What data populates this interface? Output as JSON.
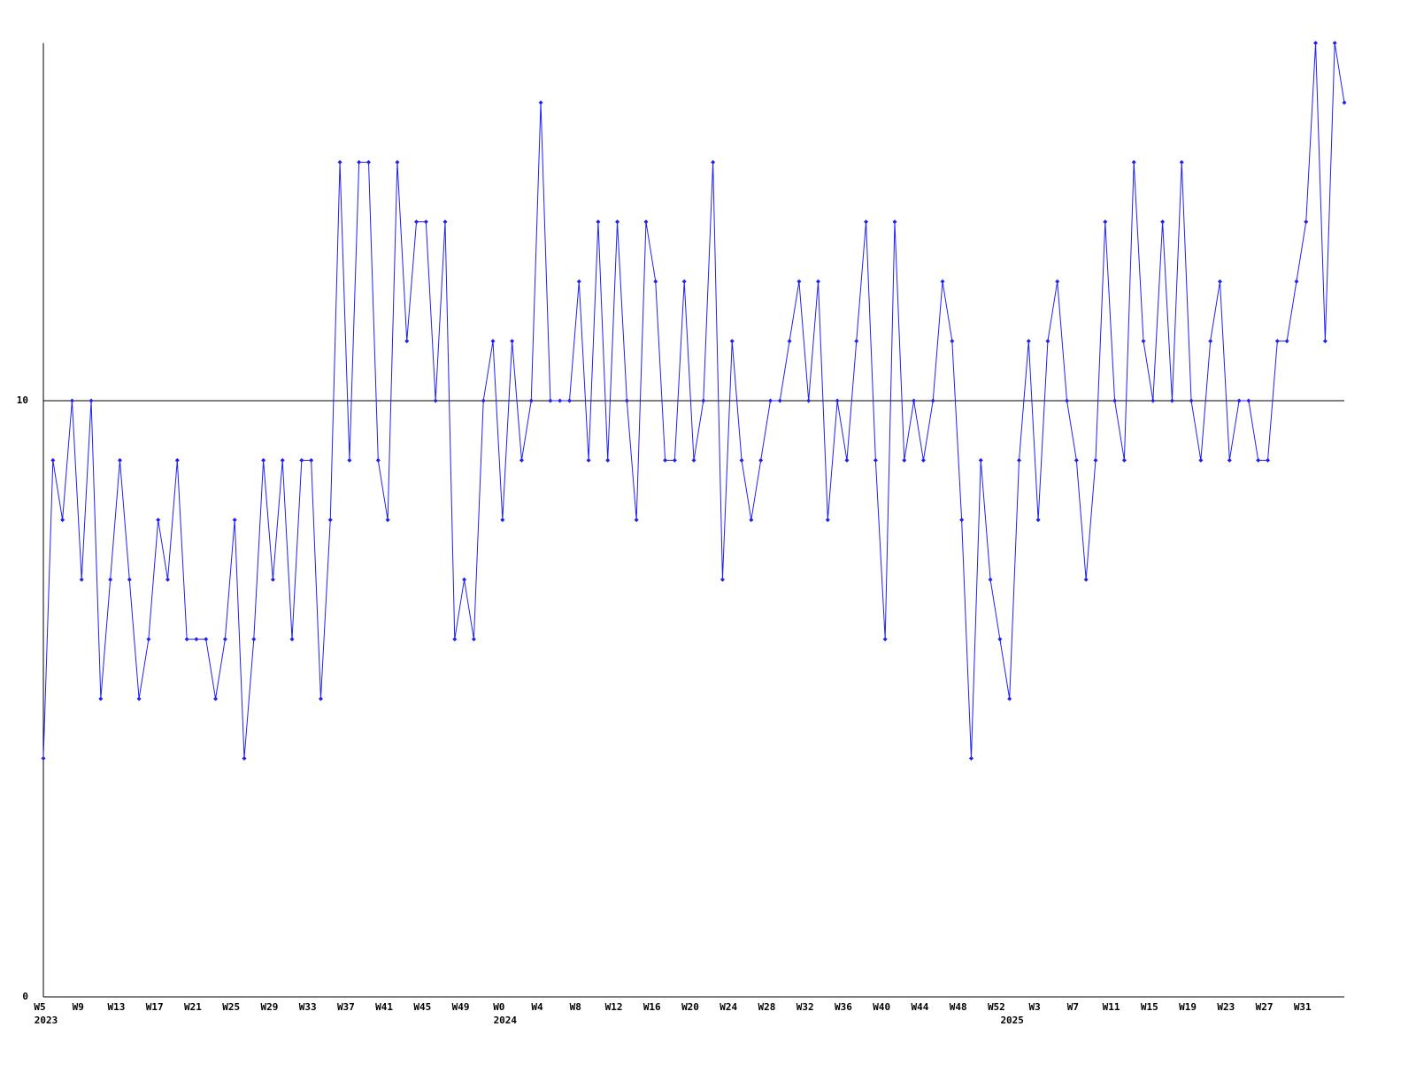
{
  "chart_data": {
    "type": "line",
    "categories": [
      "W5",
      null,
      null,
      null,
      "W9",
      null,
      null,
      null,
      "W13",
      null,
      null,
      null,
      "W17",
      null,
      null,
      null,
      "W21",
      null,
      null,
      null,
      "W25",
      null,
      null,
      null,
      "W29",
      null,
      null,
      null,
      "W33",
      null,
      null,
      null,
      "W37",
      null,
      null,
      null,
      "W41",
      null,
      null,
      null,
      "W45",
      null,
      null,
      null,
      "W49",
      null,
      null,
      null,
      "W0",
      null,
      null,
      null,
      "W4",
      null,
      null,
      null,
      "W8",
      null,
      null,
      null,
      "W12",
      null,
      null,
      null,
      "W16",
      null,
      null,
      null,
      "W20",
      null,
      null,
      null,
      "W24",
      null,
      null,
      null,
      "W28",
      null,
      null,
      null,
      "W32",
      null,
      null,
      null,
      "W36",
      null,
      null,
      null,
      "W40",
      null,
      null,
      null,
      "W44",
      null,
      null,
      null,
      "W48",
      null,
      null,
      null,
      "W52",
      null,
      null,
      null,
      "W3",
      null,
      null,
      null,
      "W7",
      null,
      null,
      null,
      "W11",
      null,
      null,
      null,
      "W15",
      null,
      null,
      null,
      "W19",
      null,
      null,
      null,
      "W23",
      null,
      null,
      null,
      "W27",
      null,
      null,
      null,
      "W31",
      null,
      null,
      null,
      null
    ],
    "x_sublabels": [
      "2023",
      null,
      null,
      null,
      null,
      null,
      null,
      null,
      null,
      null,
      null,
      null,
      null,
      null,
      null,
      null,
      null,
      null,
      null,
      null,
      null,
      null,
      null,
      null,
      null,
      null,
      null,
      null,
      null,
      null,
      null,
      null,
      null,
      null,
      null,
      null,
      null,
      null,
      null,
      null,
      null,
      null,
      null,
      null,
      null,
      null,
      null,
      null,
      "2024",
      null,
      null,
      null,
      null,
      null,
      null,
      null,
      null,
      null,
      null,
      null,
      null,
      null,
      null,
      null,
      null,
      null,
      null,
      null,
      null,
      null,
      null,
      null,
      null,
      null,
      null,
      null,
      null,
      null,
      null,
      null,
      null,
      null,
      null,
      null,
      null,
      null,
      null,
      null,
      null,
      null,
      null,
      null,
      null,
      null,
      null,
      null,
      null,
      null,
      null,
      null,
      null,
      "2025",
      null,
      null,
      null,
      null,
      null,
      null,
      null,
      null,
      null,
      null,
      null,
      null,
      null,
      null,
      null,
      null,
      null,
      null,
      null,
      null,
      null,
      null,
      null,
      null,
      null,
      null,
      null,
      null,
      null,
      null,
      null,
      null,
      null,
      null,
      null
    ],
    "values": [
      4,
      9,
      8,
      10,
      7,
      10,
      5,
      7,
      9,
      7,
      5,
      6,
      8,
      7,
      9,
      6,
      6,
      6,
      5,
      6,
      8,
      4,
      6,
      9,
      7,
      9,
      6,
      9,
      9,
      5,
      8,
      14,
      9,
      14,
      14,
      9,
      8,
      14,
      11,
      13,
      13,
      10,
      13,
      6,
      7,
      6,
      10,
      11,
      8,
      11,
      9,
      10,
      15,
      10,
      10,
      10,
      12,
      9,
      13,
      9,
      13,
      10,
      8,
      13,
      12,
      9,
      9,
      12,
      9,
      10,
      14,
      7,
      11,
      9,
      8,
      9,
      10,
      10,
      11,
      12,
      10,
      12,
      8,
      10,
      9,
      11,
      13,
      9,
      6,
      13,
      9,
      10,
      9,
      10,
      12,
      11,
      8,
      4,
      9,
      7,
      6,
      5,
      9,
      11,
      8,
      11,
      12,
      10,
      9,
      7,
      9,
      13,
      10,
      9,
      14,
      11,
      10,
      13,
      10,
      14,
      10,
      9,
      11,
      12,
      9,
      10,
      10,
      9,
      9,
      11,
      11,
      12,
      13,
      16,
      11,
      16,
      15
    ],
    "color": "#2020f0",
    "ylim": [
      0,
      16
    ],
    "yticks": [
      0,
      10
    ],
    "grid": true
  }
}
